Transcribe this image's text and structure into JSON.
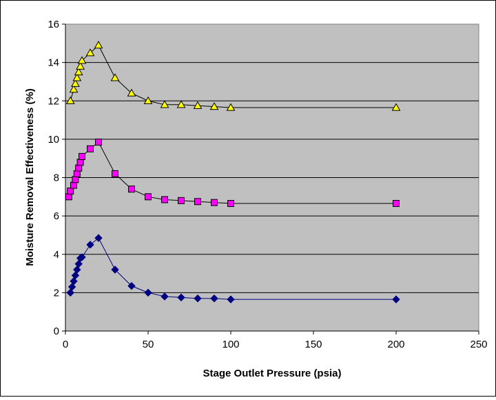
{
  "chart_data": {
    "type": "scatter",
    "title": "",
    "xlabel": "Stage Outlet Pressure (psia)",
    "ylabel": "Moisture Removal Effectiveness (%)",
    "xlim": [
      0,
      250
    ],
    "ylim": [
      0,
      16
    ],
    "xticks": [
      0,
      50,
      100,
      150,
      200,
      250
    ],
    "yticks": [
      0,
      2,
      4,
      6,
      8,
      10,
      12,
      14,
      16
    ],
    "grid": "horizontal major gridlines",
    "legend": "none",
    "plot_background": "#c0c0c0",
    "series": [
      {
        "marker": "triangle",
        "color": "#ffff00",
        "line_color": "#000000",
        "x": [
          3,
          5,
          6,
          7,
          8,
          9,
          10,
          15,
          20,
          30,
          40,
          50,
          60,
          70,
          80,
          90,
          100,
          200
        ],
        "y": [
          12.0,
          12.6,
          12.9,
          13.2,
          13.5,
          13.8,
          14.1,
          14.5,
          14.9,
          13.2,
          12.4,
          12.0,
          11.8,
          11.8,
          11.75,
          11.7,
          11.65,
          11.65
        ]
      },
      {
        "marker": "square",
        "color": "#ff00ff",
        "line_color": "#000000",
        "x": [
          2,
          3,
          5,
          6,
          7,
          8,
          9,
          10,
          15,
          20,
          30,
          40,
          50,
          60,
          70,
          80,
          90,
          100,
          200
        ],
        "y": [
          7.0,
          7.3,
          7.6,
          7.9,
          8.2,
          8.5,
          8.8,
          9.1,
          9.5,
          9.85,
          8.2,
          7.4,
          7.0,
          6.85,
          6.8,
          6.75,
          6.7,
          6.65,
          6.65
        ]
      },
      {
        "marker": "diamond",
        "color": "#000080",
        "line_color": "#000080",
        "x": [
          3,
          4,
          5,
          6,
          7,
          8,
          9,
          10,
          15,
          20,
          30,
          40,
          50,
          60,
          70,
          80,
          90,
          100,
          200
        ],
        "y": [
          2.0,
          2.3,
          2.6,
          2.9,
          3.2,
          3.5,
          3.8,
          3.85,
          4.5,
          4.85,
          3.2,
          2.35,
          2.0,
          1.8,
          1.75,
          1.7,
          1.7,
          1.65,
          1.65
        ]
      }
    ]
  }
}
